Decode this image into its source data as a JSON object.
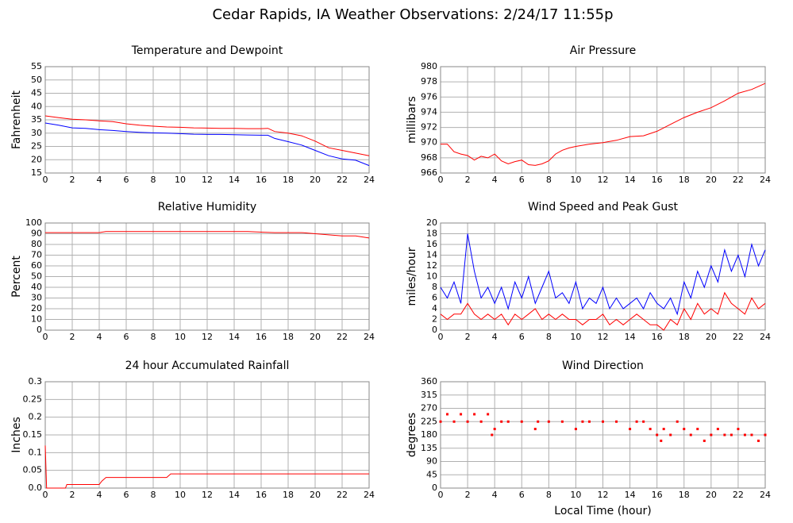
{
  "title": "Cedar Rapids, IA Weather Observations: 2/24/17 11:55p",
  "chart_data": [
    {
      "type": "line",
      "title": "Temperature and Dewpoint",
      "ylabel": "Fahrenheit",
      "xlim": [
        0,
        24
      ],
      "xticks": [
        0,
        2,
        4,
        6,
        8,
        10,
        12,
        14,
        16,
        18,
        20,
        22,
        24
      ],
      "ylim": [
        15,
        55
      ],
      "yticks": [
        15,
        20,
        25,
        30,
        35,
        40,
        45,
        50,
        55
      ],
      "grid": true,
      "x": [
        0,
        1,
        2,
        3,
        4,
        5,
        6,
        7,
        8,
        9,
        10,
        11,
        12,
        13,
        14,
        15,
        16,
        16.5,
        17,
        18,
        19,
        20,
        21,
        22,
        23,
        24
      ],
      "series": [
        {
          "color": "#ff0000",
          "values": [
            36.5,
            35.8,
            35.2,
            35,
            34.6,
            34.3,
            33.5,
            33,
            32.6,
            32.3,
            32.2,
            32,
            31.9,
            31.8,
            31.8,
            31.7,
            31.7,
            31.8,
            30.6,
            30,
            29,
            27,
            24.5,
            23.5,
            22.5,
            21.5
          ]
        },
        {
          "color": "#0000ff",
          "values": [
            33.8,
            33,
            32,
            31.8,
            31.3,
            31,
            30.6,
            30.3,
            30.1,
            30,
            29.8,
            29.6,
            29.5,
            29.5,
            29.4,
            29.3,
            29.2,
            29.2,
            28,
            26.8,
            25.5,
            23.5,
            21.5,
            20.3,
            19.8,
            17.8
          ]
        }
      ]
    },
    {
      "type": "line",
      "title": "Air Pressure",
      "ylabel": "millibars",
      "xlim": [
        0,
        24
      ],
      "xticks": [
        0,
        2,
        4,
        6,
        8,
        10,
        12,
        14,
        16,
        18,
        20,
        22,
        24
      ],
      "ylim": [
        966,
        980
      ],
      "yticks": [
        966,
        968,
        970,
        972,
        974,
        976,
        978,
        980
      ],
      "grid": true,
      "x": [
        0,
        0.5,
        1,
        1.5,
        2,
        2.5,
        3,
        3.5,
        4,
        4.5,
        5,
        5.5,
        6,
        6.5,
        7,
        7.5,
        8,
        8.5,
        9,
        9.5,
        10,
        11,
        12,
        13,
        14,
        15,
        16,
        17,
        18,
        19,
        20,
        21,
        22,
        23,
        24
      ],
      "series": [
        {
          "color": "#ff0000",
          "values": [
            969.8,
            969.8,
            968.8,
            968.5,
            968.3,
            967.7,
            968.2,
            968,
            968.5,
            967.6,
            967.2,
            967.5,
            967.7,
            967.1,
            967,
            967.2,
            967.6,
            968.5,
            969,
            969.3,
            969.5,
            969.8,
            970,
            970.3,
            970.8,
            970.9,
            971.5,
            972.4,
            973.3,
            974,
            974.6,
            975.5,
            976.5,
            977,
            977.8
          ]
        }
      ]
    },
    {
      "type": "line",
      "title": "Relative Humidity",
      "ylabel": "Percent",
      "xlim": [
        0,
        24
      ],
      "xticks": [
        0,
        2,
        4,
        6,
        8,
        10,
        12,
        14,
        16,
        18,
        20,
        22,
        24
      ],
      "ylim": [
        0,
        100
      ],
      "yticks": [
        0,
        10,
        20,
        30,
        40,
        50,
        60,
        70,
        80,
        90,
        100
      ],
      "grid": true,
      "x": [
        0,
        4,
        4.5,
        8,
        12,
        15,
        16,
        17,
        19,
        20,
        21,
        22,
        23,
        24
      ],
      "series": [
        {
          "color": "#ff0000",
          "values": [
            91,
            91,
            92,
            92,
            92,
            92,
            91.5,
            91,
            91,
            90,
            89,
            88,
            88,
            86
          ]
        }
      ]
    },
    {
      "type": "line",
      "title": "Wind Speed and Peak Gust",
      "ylabel": "miles/hour",
      "xlim": [
        0,
        24
      ],
      "xticks": [
        0,
        2,
        4,
        6,
        8,
        10,
        12,
        14,
        16,
        18,
        20,
        22,
        24
      ],
      "ylim": [
        0,
        20
      ],
      "yticks": [
        0,
        2,
        4,
        6,
        8,
        10,
        12,
        14,
        16,
        18,
        20
      ],
      "grid": true,
      "x": [
        0,
        0.5,
        1,
        1.5,
        2,
        2.5,
        3,
        3.5,
        4,
        4.5,
        5,
        5.5,
        6,
        6.5,
        7,
        7.5,
        8,
        8.5,
        9,
        9.5,
        10,
        10.5,
        11,
        11.5,
        12,
        12.5,
        13,
        13.5,
        14,
        14.5,
        15,
        15.5,
        16,
        16.5,
        17,
        17.5,
        18,
        18.5,
        19,
        19.5,
        20,
        20.5,
        21,
        21.5,
        22,
        22.5,
        23,
        23.5,
        24
      ],
      "series": [
        {
          "color": "#0000ff",
          "values": [
            8,
            6,
            9,
            5,
            18,
            11,
            6,
            8,
            5,
            8,
            4,
            9,
            6,
            10,
            5,
            8,
            11,
            6,
            7,
            5,
            9,
            4,
            6,
            5,
            8,
            4,
            6,
            4,
            5,
            6,
            4,
            7,
            5,
            4,
            6,
            3,
            9,
            6,
            11,
            8,
            12,
            9,
            15,
            11,
            14,
            10,
            16,
            12,
            15
          ]
        },
        {
          "color": "#ff0000",
          "values": [
            3,
            2,
            3,
            3,
            5,
            3,
            2,
            3,
            2,
            3,
            1,
            3,
            2,
            3,
            4,
            2,
            3,
            2,
            3,
            2,
            2,
            1,
            2,
            2,
            3,
            1,
            2,
            1,
            2,
            3,
            2,
            1,
            1,
            0,
            2,
            1,
            4,
            2,
            5,
            3,
            4,
            3,
            7,
            5,
            4,
            3,
            6,
            4,
            5
          ]
        }
      ]
    },
    {
      "type": "line",
      "title": "24 hour Accumulated Rainfall",
      "ylabel": "Inches",
      "xlim": [
        0,
        24
      ],
      "xticks": [
        0,
        2,
        4,
        6,
        8,
        10,
        12,
        14,
        16,
        18,
        20,
        22,
        24
      ],
      "ylim": [
        0,
        0.3
      ],
      "yticks": [
        {
          "value": 0,
          "label": "0.0"
        },
        0.05,
        0.1,
        0.15,
        0.2,
        0.25,
        0.3
      ],
      "grid": true,
      "x": [
        0,
        0.1,
        1.5,
        1.6,
        4,
        4.2,
        4.5,
        9,
        9.3,
        24
      ],
      "series": [
        {
          "color": "#ff0000",
          "values": [
            0.12,
            0,
            0,
            0.01,
            0.01,
            0.02,
            0.03,
            0.03,
            0.04,
            0.04
          ]
        }
      ]
    },
    {
      "type": "scatter",
      "title": "Wind Direction",
      "ylabel": "degrees",
      "xlabel": "Local Time (hour)",
      "xlim": [
        0,
        24
      ],
      "xticks": [
        0,
        2,
        4,
        6,
        8,
        10,
        12,
        14,
        16,
        18,
        20,
        22,
        24
      ],
      "ylim": [
        0,
        360
      ],
      "yticks": [
        0,
        45,
        90,
        135,
        180,
        225,
        270,
        315,
        360
      ],
      "grid": true,
      "x": [
        0,
        0.5,
        1,
        1.5,
        2,
        2.5,
        3,
        3.5,
        3.8,
        4,
        4.5,
        5,
        6,
        7,
        7.2,
        8,
        9,
        10,
        10.5,
        11,
        12,
        13,
        14,
        14.5,
        15,
        15.5,
        16,
        16.3,
        16.5,
        17,
        17.5,
        18,
        18.5,
        19,
        19.5,
        20,
        20.5,
        21,
        21.5,
        22,
        22.5,
        23,
        23.5,
        24
      ],
      "series": [
        {
          "color": "#ff0000",
          "values": [
            225,
            250,
            225,
            250,
            225,
            250,
            225,
            250,
            180,
            200,
            225,
            225,
            225,
            200,
            225,
            225,
            225,
            200,
            225,
            225,
            225,
            225,
            200,
            225,
            225,
            200,
            180,
            160,
            200,
            180,
            225,
            200,
            180,
            200,
            160,
            180,
            200,
            180,
            180,
            200,
            180,
            180,
            160,
            180
          ]
        }
      ]
    }
  ]
}
